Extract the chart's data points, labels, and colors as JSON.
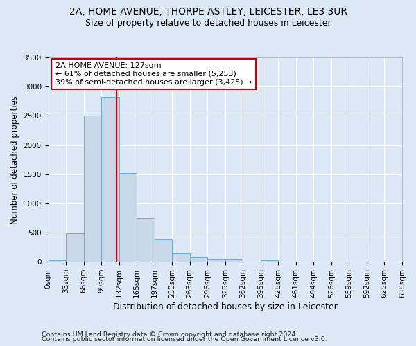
{
  "title1": "2A, HOME AVENUE, THORPE ASTLEY, LEICESTER, LE3 3UR",
  "title2": "Size of property relative to detached houses in Leicester",
  "xlabel": "Distribution of detached houses by size in Leicester",
  "ylabel": "Number of detached properties",
  "property_size": 127,
  "bin_width": 33,
  "bin_edges": [
    0,
    33,
    66,
    99,
    132,
    165,
    198,
    231,
    264,
    297,
    330,
    363,
    396,
    429,
    462,
    495,
    528,
    561,
    594,
    627,
    660
  ],
  "xtick_labels": [
    "0sqm",
    "33sqm",
    "66sqm",
    "99sqm",
    "132sqm",
    "165sqm",
    "197sqm",
    "230sqm",
    "263sqm",
    "296sqm",
    "329sqm",
    "362sqm",
    "395sqm",
    "428sqm",
    "461sqm",
    "494sqm",
    "526sqm",
    "559sqm",
    "592sqm",
    "625sqm",
    "658sqm"
  ],
  "bar_heights": [
    25,
    490,
    2510,
    2820,
    1520,
    745,
    385,
    140,
    70,
    55,
    55,
    0,
    30,
    0,
    0,
    0,
    0,
    0,
    0,
    0
  ],
  "bar_color": "#c9d9ea",
  "bar_edge_color": "#6aadd5",
  "vline_color": "#cc0000",
  "vline_x": 127,
  "annotation_line1": "2A HOME AVENUE: 127sqm",
  "annotation_line2": "← 61% of detached houses are smaller (5,253)",
  "annotation_line3": "39% of semi-detached houses are larger (3,425) →",
  "annotation_box_color": "#ffffff",
  "annotation_box_edge": "#cc0000",
  "ylim": [
    0,
    3500
  ],
  "xlim": [
    0,
    660
  ],
  "yticks": [
    0,
    500,
    1000,
    1500,
    2000,
    2500,
    3000,
    3500
  ],
  "bg_color": "#dce8f5",
  "grid_color": "#ffffff",
  "footer1": "Contains HM Land Registry data © Crown copyright and database right 2024.",
  "footer2": "Contains public sector information licensed under the Open Government Licence v3.0.",
  "title1_fontsize": 10,
  "title2_fontsize": 9,
  "xlabel_fontsize": 9,
  "ylabel_fontsize": 8.5,
  "tick_fontsize": 7.5,
  "annot_fontsize": 8,
  "footer_fontsize": 6.8
}
